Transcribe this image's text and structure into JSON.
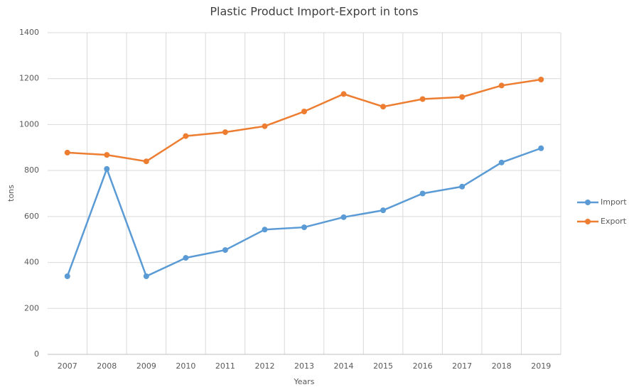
{
  "chart_data": {
    "type": "line",
    "title": "Plastic Product Import-Export in tons",
    "x_label": "Years",
    "y_label": "tons",
    "categories": [
      "2007",
      "2008",
      "2009",
      "2010",
      "2011",
      "2012",
      "2013",
      "2014",
      "2015",
      "2016",
      "2017",
      "2018",
      "2019"
    ],
    "series": [
      {
        "name": "Import",
        "color": "#5b9bd5",
        "values": [
          340,
          807,
          340,
          420,
          454,
          543,
          553,
          597,
          627,
          700,
          730,
          835,
          897
        ]
      },
      {
        "name": "Export",
        "color": "#ed7d31",
        "values": [
          878,
          868,
          840,
          950,
          967,
          993,
          1057,
          1133,
          1078,
          1111,
          1120,
          1170,
          1196
        ]
      }
    ],
    "ylim": [
      0,
      1400
    ],
    "yticks": [
      0,
      200,
      400,
      600,
      800,
      1000,
      1200,
      1400
    ],
    "grid": true,
    "legend": "right"
  }
}
